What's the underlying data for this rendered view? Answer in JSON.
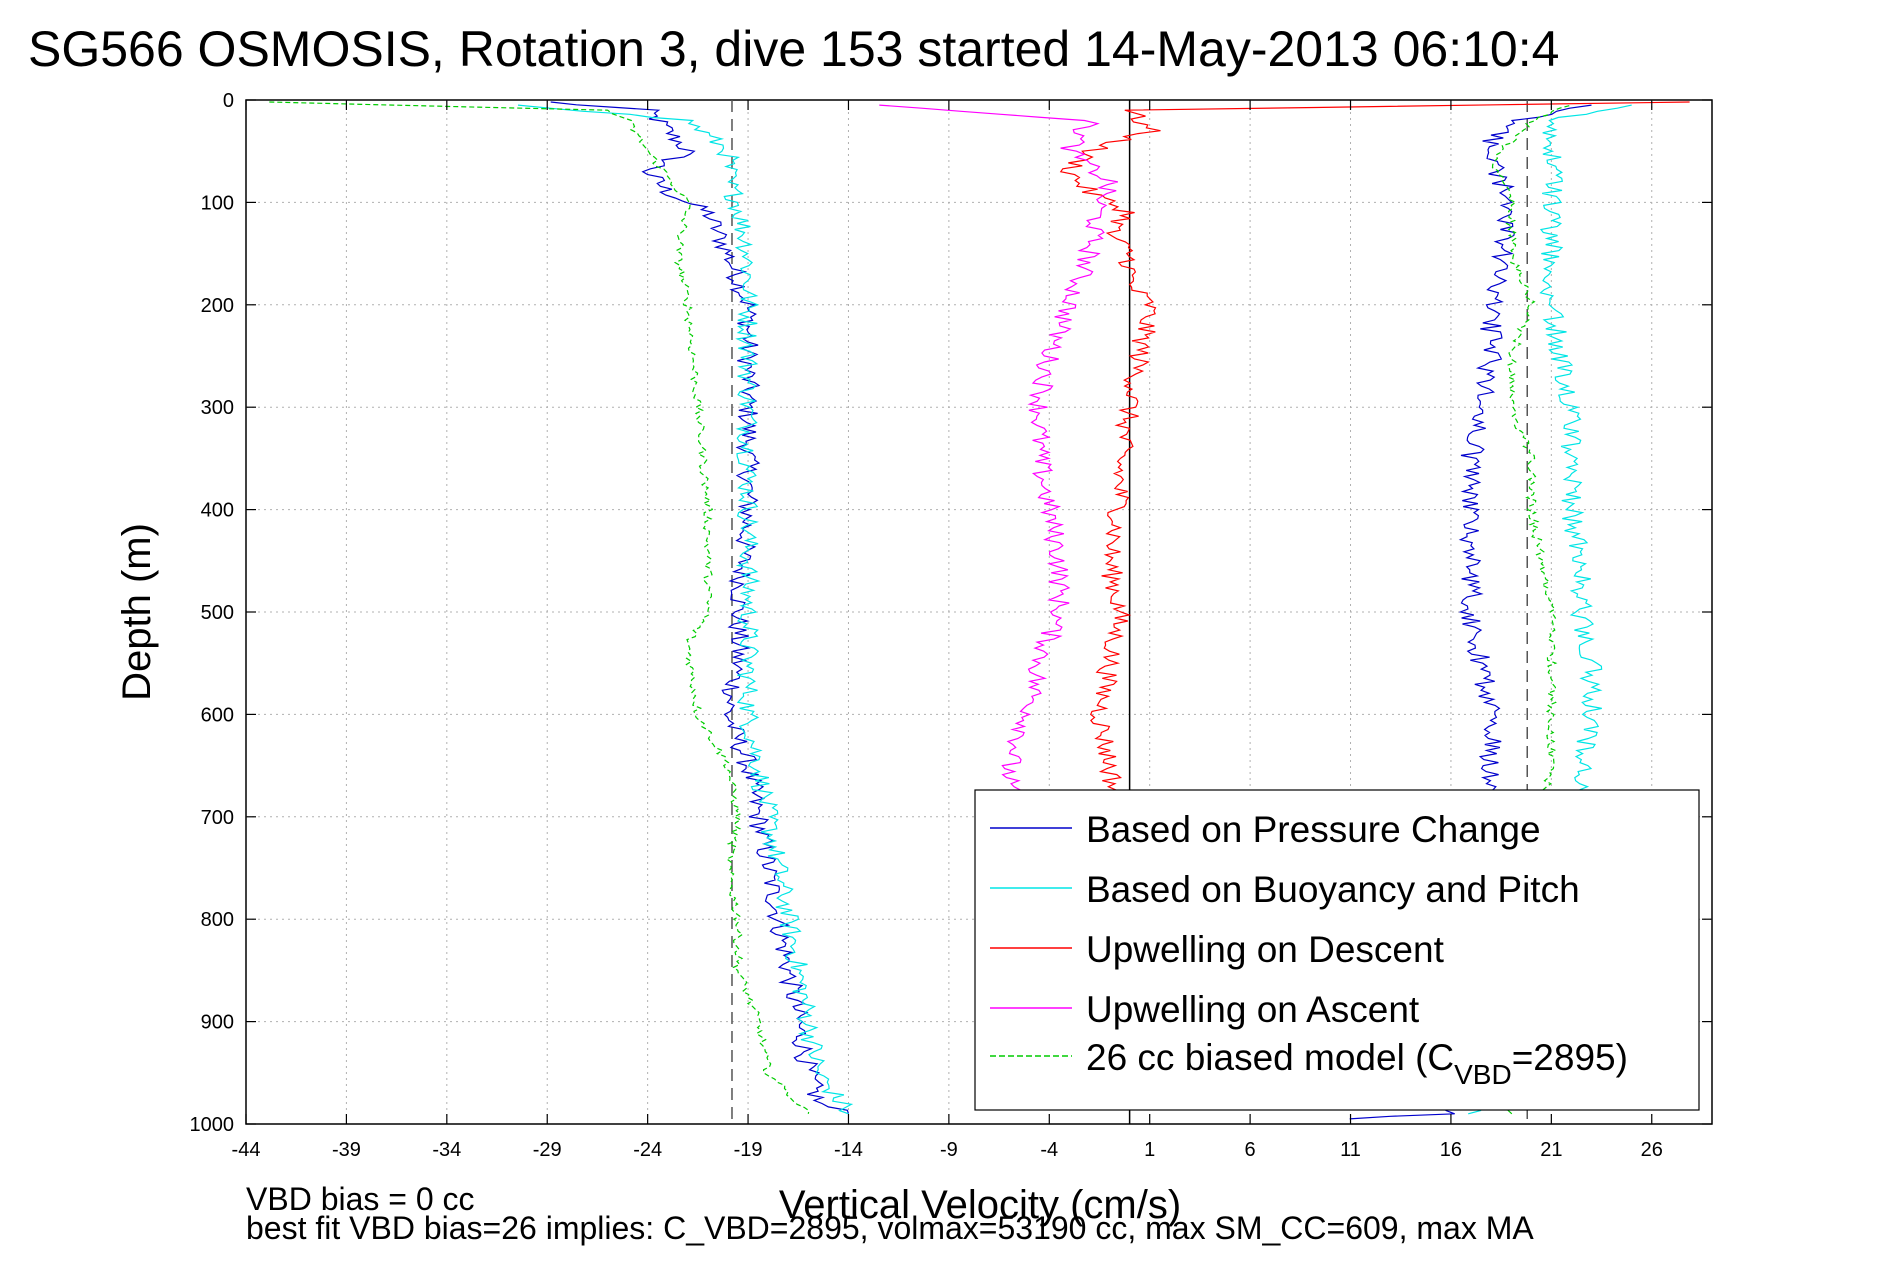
{
  "chart_data": {
    "type": "line",
    "title": "SG566 OSMOSIS, Rotation 3, dive 153 started 14-May-2013 06:10:4",
    "xlabel": "Vertical Velocity (cm/s)",
    "ylabel": "Depth (m)",
    "xlim": [
      -44,
      29
    ],
    "ylim": [
      0,
      1000
    ],
    "y_reversed": true,
    "x_ticks": [
      -44,
      -39,
      -34,
      -29,
      -24,
      -19,
      -14,
      -9,
      -4,
      1,
      6,
      11,
      16,
      21,
      26
    ],
    "y_ticks": [
      0,
      100,
      200,
      300,
      400,
      500,
      600,
      700,
      800,
      900,
      1000
    ],
    "grid": true,
    "legend_position": "bottom-right",
    "reference_lines": [
      {
        "x": -19.8,
        "style": "dashed",
        "color": "#555555"
      },
      {
        "x": 0,
        "style": "solid",
        "color": "#000000"
      },
      {
        "x": 19.8,
        "style": "dashed",
        "color": "#555555"
      }
    ],
    "series": [
      {
        "name": "Based on Pressure Change",
        "color": "#0000cc",
        "style": "solid",
        "segments": [
          {
            "depth": [
              2,
              10,
              30,
              50,
              70,
              90,
              110,
              150,
              200,
              300,
              400,
              500,
              550,
              600,
              650,
              700,
              750,
              800,
              850,
              900,
              950,
              980,
              990
            ],
            "velocity": [
              -29,
              -24,
              -23,
              -22,
              -24,
              -23,
              -21,
              -20,
              -19,
              -19,
              -19,
              -19.5,
              -19.5,
              -20,
              -19,
              -18.5,
              -18,
              -17.5,
              -17,
              -16.5,
              -16,
              -15.5,
              -14
            ]
          },
          {
            "depth": [
              995,
              990,
              960,
              900,
              850,
              800,
              750,
              700,
              650,
              600,
              550,
              500,
              450,
              400,
              350,
              300,
              250,
              200,
              150,
              100,
              60,
              40,
              20,
              5
            ],
            "velocity": [
              11,
              16,
              18,
              18.5,
              18.5,
              18,
              18,
              18,
              18,
              18,
              17.5,
              17,
              17,
              17,
              17,
              17.5,
              18,
              18,
              18.5,
              19,
              18,
              18,
              19,
              23
            ]
          }
        ]
      },
      {
        "name": "Based on Buoyancy and Pitch",
        "color": "#00e5e5",
        "style": "solid",
        "segments": [
          {
            "depth": [
              5,
              20,
              50,
              80,
              100,
              150,
              200,
              300,
              400,
              500,
              550,
              600,
              650,
              700,
              750,
              800,
              850,
              900,
              950,
              990
            ],
            "velocity": [
              -30,
              -22,
              -20,
              -20,
              -19.5,
              -19,
              -19,
              -19,
              -19,
              -19,
              -19,
              -19,
              -18.5,
              -18,
              -17.5,
              -17,
              -16.5,
              -16,
              -15.5,
              -14
            ]
          },
          {
            "depth": [
              990,
              950,
              900,
              800,
              700,
              650,
              600,
              550,
              500,
              450,
              400,
              350,
              300,
              250,
              200,
              150,
              100,
              50,
              20,
              5
            ],
            "velocity": [
              17,
              19,
              20,
              21,
              22,
              22.5,
              23,
              23,
              22.5,
              22.5,
              22,
              22,
              22,
              21.5,
              21,
              21,
              21,
              21,
              21,
              25
            ]
          }
        ]
      },
      {
        "name": "Upwelling on Descent",
        "color": "#ff0000",
        "style": "solid",
        "segments": [
          {
            "depth": [
              2,
              10,
              30,
              50,
              70,
              90,
              110,
              130,
              150,
              180,
              200,
              250,
              300,
              350,
              400,
              450,
              500,
              550,
              600,
              650,
              700
            ],
            "velocity": [
              28,
              0,
              1,
              -2,
              -3,
              -2,
              0,
              -1,
              0,
              0,
              1,
              0.5,
              0,
              -0.5,
              -0.5,
              -1,
              -0.5,
              -1,
              -1.5,
              -1,
              -0.5
            ]
          }
        ]
      },
      {
        "name": "Upwelling on Ascent",
        "color": "#ff00ff",
        "style": "solid",
        "segments": [
          {
            "depth": [
              5,
              20,
              50,
              80,
              100,
              150,
              200,
              250,
              300,
              350,
              400,
              450,
              500,
              550,
              600,
              650,
              700
            ],
            "velocity": [
              -12,
              -2,
              -3,
              -1,
              -1.5,
              -2,
              -3,
              -4,
              -4.5,
              -4.5,
              -4,
              -3.5,
              -3.5,
              -4.5,
              -5,
              -6,
              -6
            ]
          }
        ]
      },
      {
        "name": "26 cc biased model (C_VBD=2895)",
        "color": "#00cc00",
        "style": "dashed",
        "segments": [
          {
            "depth": [
              2,
              10,
              20,
              50,
              100,
              150,
              200,
              300,
              400,
              500,
              530,
              600,
              650,
              700,
              750,
              800,
              850,
              900,
              950,
              990
            ],
            "velocity": [
              -43,
              -26,
              -25,
              -24,
              -22,
              -22.5,
              -22,
              -21.5,
              -21,
              -21,
              -22,
              -21.5,
              -20,
              -19.5,
              -20,
              -19.5,
              -19.5,
              -18.5,
              -18,
              -16
            ]
          },
          {
            "depth": [
              990,
              950,
              900,
              800,
              700,
              650,
              600,
              550,
              500,
              450,
              400,
              350,
              300,
              250,
              200,
              150,
              100,
              60,
              20,
              5
            ],
            "velocity": [
              19,
              20,
              20.5,
              20,
              20.5,
              21,
              21,
              21,
              21,
              20.5,
              20,
              20,
              19,
              19,
              20,
              19,
              19,
              18,
              20,
              22
            ]
          }
        ]
      }
    ],
    "legend": [
      {
        "label": "Based on Pressure Change"
      },
      {
        "label": "Based on Buoyancy and Pitch"
      },
      {
        "label": "Upwelling on Descent"
      },
      {
        "label": "Upwelling on Ascent"
      },
      {
        "label_prefix": "26 cc biased model (C",
        "label_sub": "VBD",
        "label_suffix": "=2895)"
      }
    ],
    "annotations": [
      "VBD bias = 0 cc",
      "best fit VBD bias=26 implies: C_VBD=2895, volmax=53190 cc, max SM_CC=609, max MA"
    ]
  }
}
